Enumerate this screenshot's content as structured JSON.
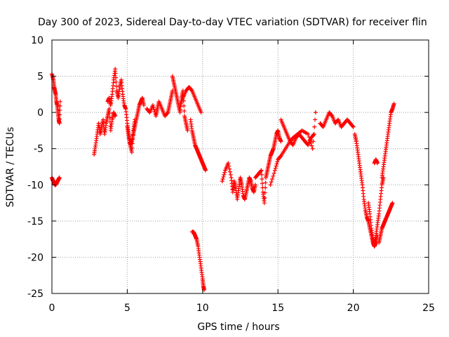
{
  "chart_data": {
    "type": "scatter",
    "title": "Day 300 of 2023, Sidereal Day-to-day VTEC variation (SDTVAR) for receiver flin",
    "xlabel": "GPS time / hours",
    "ylabel": "SDTVAR / TECUs",
    "xlim": [
      0,
      25
    ],
    "ylim": [
      -25,
      10
    ],
    "xticks": [
      0,
      5,
      10,
      15,
      20,
      25
    ],
    "xtick_labels": [
      "0",
      "5",
      "10",
      "15",
      "20",
      "25"
    ],
    "yticks": [
      -25,
      -20,
      -15,
      -10,
      -5,
      0,
      5,
      10
    ],
    "ytick_labels": [
      "-25",
      "-20",
      "-15",
      "-10",
      "-5",
      "0",
      "5",
      "10"
    ],
    "grid": true,
    "marker": "+",
    "color": "#ff0000",
    "series": [
      {
        "name": "SDTVAR",
        "segments": [
          {
            "x": [
              0.0,
              0.1,
              0.15,
              0.2,
              0.25,
              0.3,
              0.35,
              0.4,
              0.45,
              0.5,
              0.55
            ],
            "y": [
              5.3,
              4.5,
              3.5,
              3.0,
              2.5,
              1.5,
              1.0,
              0.0,
              -1.0,
              -1.5,
              1.5
            ]
          },
          {
            "x": [
              0.0,
              0.05,
              0.1,
              0.15,
              0.2,
              0.25,
              0.3,
              0.35,
              0.4,
              0.45,
              0.5
            ],
            "y": [
              -9.0,
              -9.3,
              -9.5,
              -9.8,
              -10.0,
              -10.0,
              -9.8,
              -9.6,
              -9.4,
              -9.2,
              -9.0
            ]
          },
          {
            "x": [
              2.8,
              2.9,
              3.0,
              3.1,
              3.2,
              3.3,
              3.4,
              3.5,
              3.6,
              3.7,
              3.8,
              3.9,
              4.0,
              4.1,
              4.2
            ],
            "y": [
              -5.8,
              -4.5,
              -3.0,
              -1.5,
              -3.0,
              -2.0,
              -1.0,
              -3.0,
              -1.5,
              -0.5,
              0.5,
              -2.5,
              -1.0,
              0.0,
              -0.5
            ]
          },
          {
            "x": [
              3.7,
              3.8,
              3.9,
              4.0,
              4.1,
              4.2,
              4.3,
              4.4,
              4.5,
              4.6,
              4.7,
              4.8,
              4.9,
              5.0,
              5.1,
              5.2,
              5.3,
              5.4,
              5.5
            ],
            "y": [
              1.5,
              2.0,
              1.0,
              2.5,
              4.5,
              6.0,
              3.0,
              2.0,
              3.5,
              4.5,
              2.5,
              1.0,
              0.5,
              -1.5,
              -3.0,
              -4.5,
              -5.5,
              -2.5,
              -1.0
            ]
          },
          {
            "x": [
              5.0,
              5.1,
              5.2,
              5.3,
              5.4,
              5.5,
              5.6,
              5.7,
              5.8,
              5.9,
              6.0,
              6.1
            ],
            "y": [
              -2.0,
              -3.5,
              -4.5,
              -4.0,
              -3.0,
              -2.0,
              -1.0,
              0.0,
              1.0,
              1.5,
              2.0,
              1.0
            ]
          },
          {
            "x": [
              6.3,
              6.5,
              6.7,
              6.9,
              7.0,
              7.1,
              7.3,
              7.5,
              7.7,
              7.8,
              7.9,
              8.0
            ],
            "y": [
              0.5,
              0.0,
              1.0,
              -0.5,
              0.5,
              1.5,
              0.5,
              -0.5,
              0.0,
              1.0,
              2.0,
              3.0
            ]
          },
          {
            "x": [
              8.0,
              8.1,
              8.2,
              8.3,
              8.4,
              8.5,
              8.6,
              8.7,
              8.8,
              8.9,
              9.0
            ],
            "y": [
              5.0,
              4.0,
              3.0,
              2.0,
              1.0,
              0.0,
              2.0,
              3.0,
              -0.5,
              -1.5,
              -2.5
            ]
          },
          {
            "x": [
              8.5,
              8.7,
              8.9,
              9.1,
              9.3,
              9.5,
              9.7,
              9.9
            ],
            "y": [
              1.0,
              2.0,
              3.0,
              3.5,
              3.0,
              2.0,
              1.0,
              0.0
            ]
          },
          {
            "x": [
              9.2,
              9.3,
              9.4,
              9.5,
              9.6,
              9.7,
              9.8,
              9.9,
              10.0,
              10.1,
              10.2
            ],
            "y": [
              -1.0,
              -2.5,
              -3.5,
              -4.5,
              -5.0,
              -5.5,
              -6.0,
              -6.5,
              -7.0,
              -7.5,
              -8.0
            ]
          },
          {
            "x": [
              9.3,
              9.4,
              9.5,
              9.6,
              9.7,
              9.8,
              9.9,
              10.0,
              10.05,
              10.1
            ],
            "y": [
              -16.5,
              -16.5,
              -17.0,
              -17.5,
              -18.5,
              -20.0,
              -21.5,
              -23.0,
              -24.0,
              -24.5
            ]
          },
          {
            "x": [
              11.3,
              11.5,
              11.7,
              11.9,
              12.0,
              12.1,
              12.2,
              12.3,
              12.4,
              12.5,
              12.6,
              12.7,
              12.8,
              12.9,
              13.0,
              13.1,
              13.2,
              13.3,
              13.4,
              13.5
            ],
            "y": [
              -9.5,
              -8.0,
              -7.0,
              -9.0,
              -11.0,
              -9.5,
              -10.5,
              -12.0,
              -10.5,
              -9.0,
              -10.0,
              -11.5,
              -12.0,
              -11.0,
              -10.0,
              -9.0,
              -9.5,
              -10.5,
              -11.0,
              -10.0
            ]
          },
          {
            "x": [
              13.5,
              13.7,
              13.9,
              14.0,
              14.1,
              14.2,
              14.3,
              14.4,
              14.5,
              14.6,
              14.7,
              14.8,
              14.9,
              15.0,
              15.1,
              15.2
            ],
            "y": [
              -9.0,
              -8.5,
              -8.0,
              -11.0,
              -12.5,
              -9.0,
              -8.0,
              -7.0,
              -6.0,
              -5.5,
              -5.0,
              -4.0,
              -3.0,
              -2.5,
              -3.5,
              -4.0
            ]
          },
          {
            "x": [
              15.2,
              15.4,
              15.6,
              15.8,
              16.0,
              16.2,
              16.4,
              16.6,
              16.8,
              17.0,
              17.2,
              17.4
            ],
            "y": [
              -1.0,
              -2.0,
              -3.0,
              -4.0,
              -4.5,
              -3.5,
              -3.0,
              -3.5,
              -4.0,
              -4.5,
              -3.5,
              -3.0
            ]
          },
          {
            "x": [
              14.5,
              14.8,
              15.0,
              15.2,
              15.5,
              15.8,
              16.0,
              16.3,
              16.6,
              17.0,
              17.3,
              17.5
            ],
            "y": [
              -10.0,
              -8.0,
              -6.5,
              -6.0,
              -5.0,
              -4.0,
              -3.5,
              -3.0,
              -2.5,
              -3.0,
              -5.0,
              0.0
            ]
          },
          {
            "x": [
              17.8,
              18.0,
              18.2,
              18.4,
              18.6,
              18.8,
              19.0,
              19.2,
              19.4,
              19.6,
              19.8,
              20.0
            ],
            "y": [
              -1.5,
              -2.0,
              -1.0,
              0.0,
              -0.5,
              -1.5,
              -1.0,
              -2.0,
              -1.5,
              -1.0,
              -1.5,
              -2.0
            ]
          },
          {
            "x": [
              20.1,
              20.2,
              20.3,
              20.4,
              20.5,
              20.6,
              20.7,
              20.8,
              20.9,
              21.0,
              21.1,
              21.2,
              21.3,
              21.4,
              21.5,
              21.6
            ],
            "y": [
              -3.0,
              -4.0,
              -5.5,
              -7.0,
              -8.5,
              -10.0,
              -12.0,
              -13.5,
              -14.5,
              -15.0,
              -16.0,
              -17.0,
              -18.0,
              -18.5,
              -18.0,
              -17.0
            ]
          },
          {
            "x": [
              21.0,
              21.1,
              21.2,
              21.3,
              21.4,
              21.5,
              21.6,
              21.7,
              21.8,
              21.9,
              22.0
            ],
            "y": [
              -12.5,
              -14.0,
              -16.0,
              -17.5,
              -18.5,
              -17.0,
              -15.5,
              -14.0,
              -12.0,
              -10.0,
              -9.0
            ]
          },
          {
            "x": [
              21.4,
              21.5,
              21.6
            ],
            "y": [
              -7.0,
              -6.5,
              -7.0
            ]
          },
          {
            "x": [
              21.7,
              21.8,
              21.9,
              22.0,
              22.1,
              22.2,
              22.3,
              22.4,
              22.5,
              22.6
            ],
            "y": [
              -18.0,
              -17.0,
              -16.0,
              -15.5,
              -15.0,
              -14.5,
              -14.0,
              -13.5,
              -13.0,
              -12.5
            ]
          },
          {
            "x": [
              21.9,
              22.0,
              22.1,
              22.2,
              22.3,
              22.4,
              22.5,
              22.6,
              22.7
            ],
            "y": [
              -9.0,
              -7.5,
              -6.0,
              -4.5,
              -3.0,
              -1.5,
              0.0,
              0.5,
              1.2
            ]
          }
        ]
      }
    ]
  }
}
